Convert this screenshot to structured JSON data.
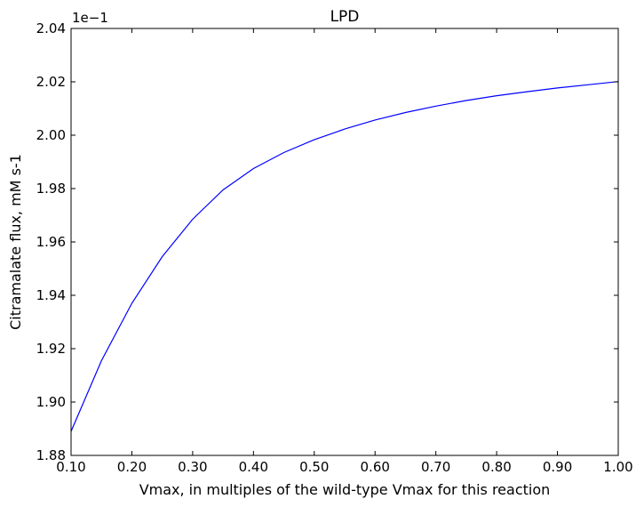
{
  "chart_data": {
    "type": "line",
    "title": "LPD",
    "xlabel": "Vmax, in multiples of the wild-type Vmax for this reaction",
    "ylabel": "Citramalate flux, mM s-1",
    "y_offset_label": "1e−1",
    "xlim": [
      0.1,
      1.0
    ],
    "ylim": [
      1.88,
      2.04
    ],
    "x_ticks": [
      0.1,
      0.2,
      0.3,
      0.4,
      0.5,
      0.6,
      0.7,
      0.8,
      0.9,
      1.0
    ],
    "x_tick_labels": [
      "0.10",
      "0.20",
      "0.30",
      "0.40",
      "0.50",
      "0.60",
      "0.70",
      "0.80",
      "0.90",
      "1.00"
    ],
    "y_ticks": [
      1.88,
      1.9,
      1.92,
      1.94,
      1.96,
      1.98,
      2.0,
      2.02,
      2.04
    ],
    "y_tick_labels": [
      "1.88",
      "1.90",
      "1.92",
      "1.94",
      "1.96",
      "1.98",
      "2.00",
      "2.02",
      "2.04"
    ],
    "grid": false,
    "series": [
      {
        "color": "#0000ff",
        "x": [
          0.1,
          0.15,
          0.2,
          0.25,
          0.3,
          0.35,
          0.4,
          0.45,
          0.5,
          0.55,
          0.6,
          0.65,
          0.7,
          0.75,
          0.8,
          0.85,
          0.9,
          0.95,
          1.0
        ],
        "y": [
          1.889,
          1.9155,
          1.937,
          1.9545,
          1.9685,
          1.9795,
          1.9875,
          1.9935,
          1.9983,
          2.0023,
          2.0057,
          2.0085,
          2.0109,
          2.013,
          2.0148,
          2.0163,
          2.0177,
          2.0189,
          2.0201
        ]
      }
    ]
  }
}
